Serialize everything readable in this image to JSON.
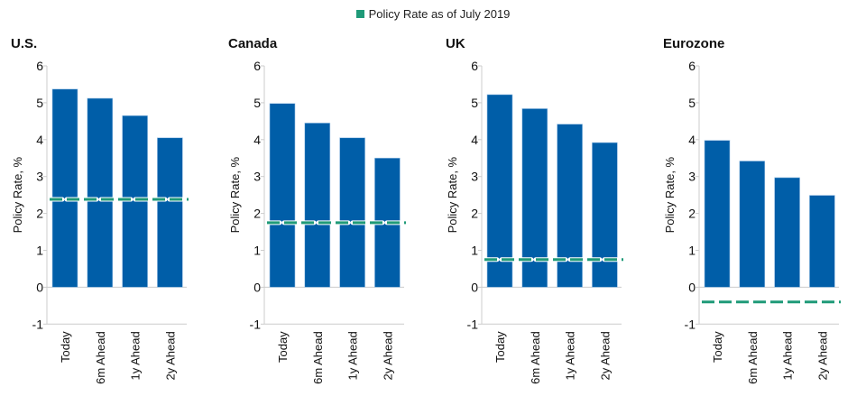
{
  "chart_data": [
    {
      "type": "bar",
      "title": "U.S.",
      "ylabel": "Policy Rate, %",
      "categories": [
        "Today",
        "6m Ahead",
        "1y Ahead",
        "2y Ahead"
      ],
      "values": [
        5.37,
        5.12,
        4.65,
        4.05
      ],
      "reference_line": 2.38,
      "ylim": [
        -1,
        6
      ],
      "yticks": [
        "6",
        "5",
        "4",
        "3",
        "2",
        "1",
        "0",
        "-1"
      ]
    },
    {
      "type": "bar",
      "title": "Canada",
      "ylabel": "Policy Rate, %",
      "categories": [
        "Today",
        "6m Ahead",
        "1y Ahead",
        "2y Ahead"
      ],
      "values": [
        4.98,
        4.45,
        4.05,
        3.5
      ],
      "reference_line": 1.75,
      "ylim": [
        -1,
        6
      ],
      "yticks": [
        "6",
        "5",
        "4",
        "3",
        "2",
        "1",
        "0",
        "-1"
      ]
    },
    {
      "type": "bar",
      "title": "UK",
      "ylabel": "Policy Rate, %",
      "categories": [
        "Today",
        "6m Ahead",
        "1y Ahead",
        "2y Ahead"
      ],
      "values": [
        5.22,
        4.84,
        4.42,
        3.92
      ],
      "reference_line": 0.75,
      "ylim": [
        -1,
        6
      ],
      "yticks": [
        "6",
        "5",
        "4",
        "3",
        "2",
        "1",
        "0",
        "-1"
      ]
    },
    {
      "type": "bar",
      "title": "Eurozone",
      "ylabel": "Policy Rate, %",
      "categories": [
        "Today",
        "6m Ahead",
        "1y Ahead",
        "2y Ahead"
      ],
      "values": [
        3.98,
        3.42,
        2.97,
        2.49
      ],
      "reference_line": -0.4,
      "ylim": [
        -1,
        6
      ],
      "yticks": [
        "6",
        "5",
        "4",
        "3",
        "2",
        "1",
        "0",
        "-1"
      ]
    }
  ],
  "legend": {
    "label": "Policy Rate as of July 2019"
  },
  "colors": {
    "bar": "#005ea8",
    "reference_line": "#1f9a78"
  }
}
